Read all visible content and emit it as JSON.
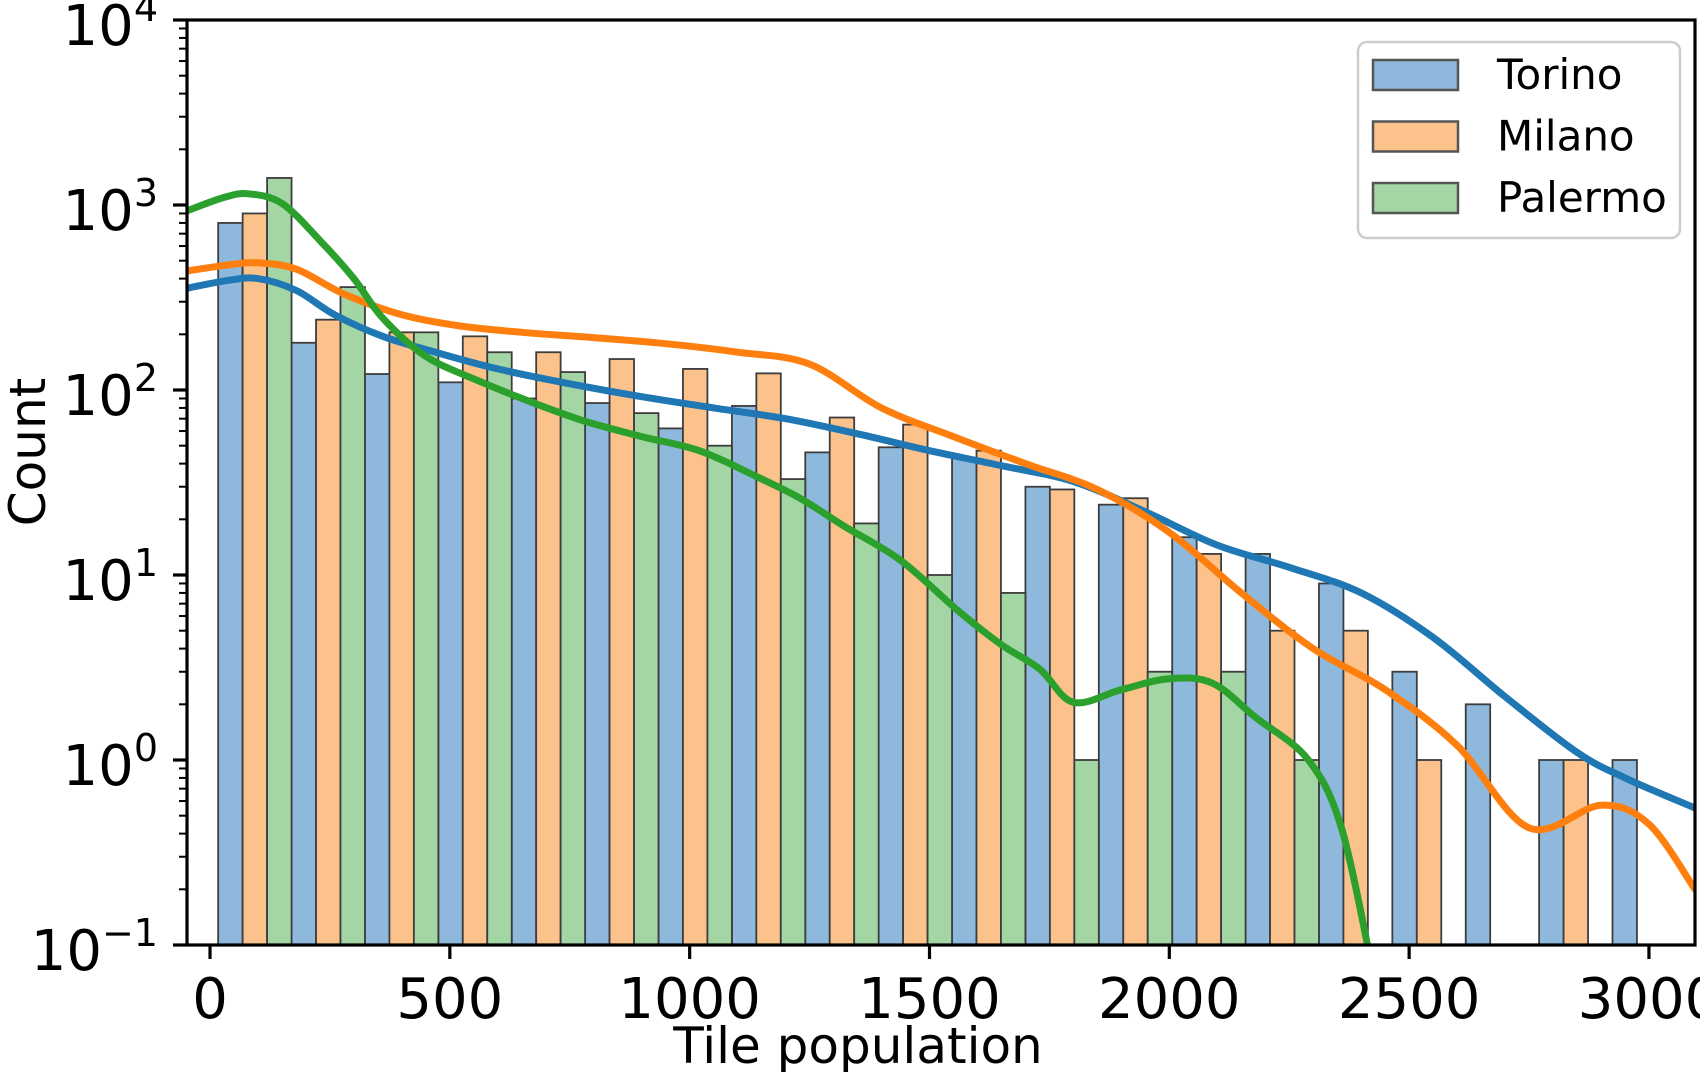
{
  "chart_data": {
    "type": "bar",
    "subtype": "histogram-with-kde",
    "title": "",
    "xlabel": "Tile population",
    "ylabel": "Count",
    "x_ticks": [
      0,
      500,
      1000,
      1500,
      2000,
      2500,
      3000
    ],
    "y_scale": "log",
    "y_tick_base": "10",
    "y_tick_exponents": [
      "-1",
      "0",
      "1",
      "2",
      "3",
      "4"
    ],
    "xlim": [
      -48,
      3096
    ],
    "ylim_exponents": [
      -1,
      4
    ],
    "grid": false,
    "legend_position": "upper right",
    "bins": {
      "start": 17,
      "width": 153,
      "count": 20,
      "mode": "dodge"
    },
    "series": [
      {
        "name": "Torino",
        "line_color": "#1f77b4",
        "bar_fill": "#8fb9dc",
        "bar_edge": "#3d3d3d",
        "counts": [
          800,
          180,
          122,
          110,
          90,
          85,
          62,
          82,
          46,
          49,
          43,
          30,
          24,
          16,
          13,
          9,
          3,
          2,
          1,
          1
        ],
        "kde": [
          [
            -48,
            355
          ],
          [
            40,
            392
          ],
          [
            100,
            400
          ],
          [
            180,
            345
          ],
          [
            260,
            255
          ],
          [
            360,
            195
          ],
          [
            470,
            160
          ],
          [
            600,
            130
          ],
          [
            750,
            108
          ],
          [
            900,
            92
          ],
          [
            1050,
            80
          ],
          [
            1200,
            70
          ],
          [
            1350,
            58
          ],
          [
            1500,
            47
          ],
          [
            1650,
            39
          ],
          [
            1800,
            32
          ],
          [
            1950,
            22
          ],
          [
            2100,
            14.5
          ],
          [
            2250,
            11
          ],
          [
            2400,
            8
          ],
          [
            2550,
            4.6
          ],
          [
            2700,
            2.2
          ],
          [
            2850,
            1.1
          ],
          [
            2950,
            0.8
          ],
          [
            3096,
            0.55
          ]
        ]
      },
      {
        "name": "Milano",
        "line_color": "#ff7f0e",
        "bar_fill": "#fbc28b",
        "bar_edge": "#3d3d3d",
        "counts": [
          900,
          240,
          205,
          195,
          160,
          147,
          130,
          123,
          71,
          65,
          47,
          29,
          26,
          13,
          5,
          5,
          1,
          0,
          1,
          0
        ],
        "kde": [
          [
            -48,
            440
          ],
          [
            40,
            475
          ],
          [
            100,
            487
          ],
          [
            180,
            450
          ],
          [
            280,
            330
          ],
          [
            400,
            255
          ],
          [
            520,
            222
          ],
          [
            650,
            205
          ],
          [
            800,
            192
          ],
          [
            950,
            178
          ],
          [
            1100,
            160
          ],
          [
            1250,
            138
          ],
          [
            1400,
            80
          ],
          [
            1550,
            56
          ],
          [
            1700,
            40
          ],
          [
            1850,
            29
          ],
          [
            2000,
            17
          ],
          [
            2150,
            8
          ],
          [
            2300,
            4
          ],
          [
            2450,
            2.4
          ],
          [
            2600,
            1.2
          ],
          [
            2750,
            0.43
          ],
          [
            2900,
            0.57
          ],
          [
            3000,
            0.45
          ],
          [
            3096,
            0.2
          ]
        ]
      },
      {
        "name": "Palermo",
        "line_color": "#2ca02c",
        "bar_fill": "#a3d6a4",
        "bar_edge": "#3d3d3d",
        "counts": [
          1400,
          360,
          205,
          160,
          125,
          75,
          50,
          33,
          19,
          10,
          8,
          1,
          3,
          3,
          1,
          0,
          0,
          0,
          0,
          0
        ],
        "kde": [
          [
            -48,
            930
          ],
          [
            30,
            1100
          ],
          [
            80,
            1150
          ],
          [
            150,
            1020
          ],
          [
            230,
            640
          ],
          [
            300,
            400
          ],
          [
            360,
            245
          ],
          [
            450,
            152
          ],
          [
            560,
            112
          ],
          [
            670,
            86
          ],
          [
            780,
            68
          ],
          [
            900,
            56
          ],
          [
            1020,
            47
          ],
          [
            1140,
            34
          ],
          [
            1230,
            26
          ],
          [
            1320,
            18.5
          ],
          [
            1440,
            12
          ],
          [
            1560,
            6.4
          ],
          [
            1650,
            4.2
          ],
          [
            1730,
            3.1
          ],
          [
            1800,
            2.05
          ],
          [
            1900,
            2.4
          ],
          [
            2000,
            2.75
          ],
          [
            2090,
            2.6
          ],
          [
            2180,
            1.7
          ],
          [
            2290,
            1.0
          ],
          [
            2360,
            0.42
          ],
          [
            2425,
            0.07
          ]
        ]
      }
    ]
  }
}
